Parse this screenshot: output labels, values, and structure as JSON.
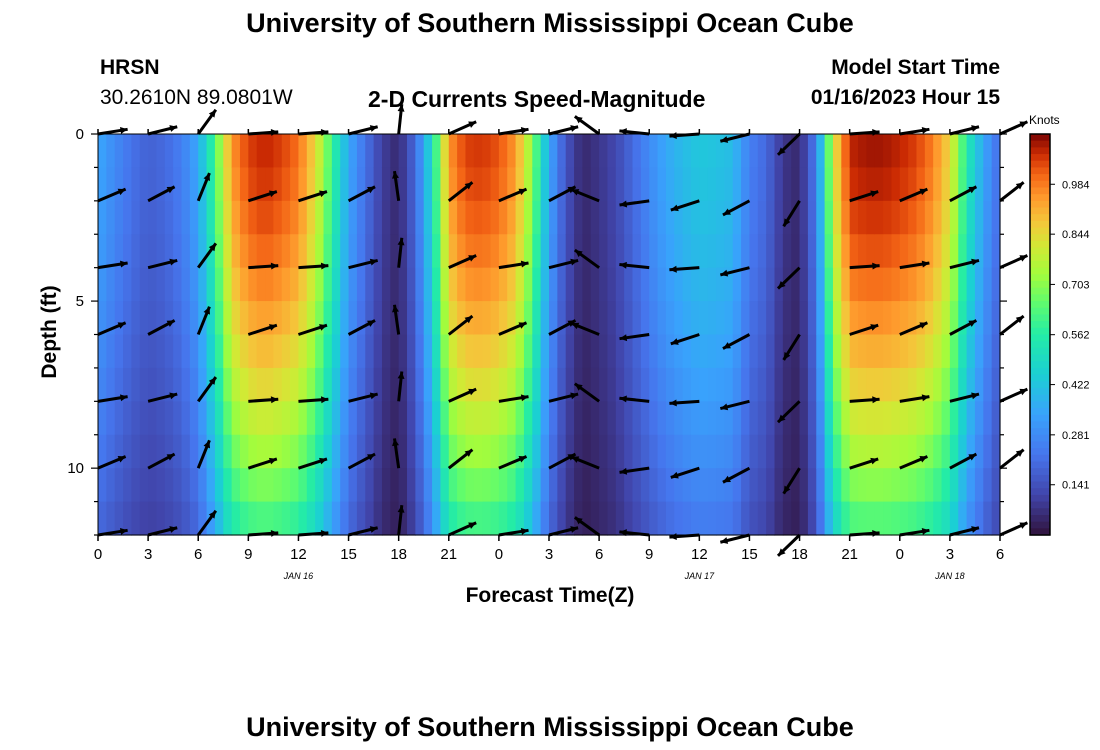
{
  "header": {
    "title": "University of Southern Mississippi Ocean Cube",
    "station": "HRSN",
    "coords": "30.2610N  89.0801W",
    "subtitle": "2-D Currents Speed-Magnitude",
    "model_start_label": "Model Start Time",
    "model_start_value": "01/16/2023 Hour 15"
  },
  "footer": {
    "title": "University of Southern Mississippi Ocean Cube"
  },
  "colors": {
    "low": "#30123b",
    "mid": "#a4fc3c",
    "high": "#7a0403",
    "arrow": "#000000"
  },
  "chart_data": {
    "type": "heatmap",
    "xlabel": "Forecast Time(Z)",
    "ylabel": "Depth (ft)",
    "x_hours_since_start": [
      0,
      39
    ],
    "x_ticks": [
      {
        "h": 0,
        "label": "0"
      },
      {
        "h": 3,
        "label": "3"
      },
      {
        "h": 6,
        "label": "6"
      },
      {
        "h": 9,
        "label": "9"
      },
      {
        "h": 12,
        "label": "12"
      },
      {
        "h": 15,
        "label": "15"
      },
      {
        "h": 18,
        "label": "18"
      },
      {
        "h": 21,
        "label": "21"
      },
      {
        "h": 24,
        "label": "0"
      },
      {
        "h": 27,
        "label": "3"
      },
      {
        "h": 30,
        "label": "6"
      },
      {
        "h": 33,
        "label": "9"
      },
      {
        "h": 36,
        "label": "12"
      },
      {
        "h": 39,
        "label": "15"
      },
      {
        "h": 42,
        "label": "18"
      },
      {
        "h": 45,
        "label": "21"
      },
      {
        "h": 48,
        "label": "0"
      },
      {
        "h": 51,
        "label": "3"
      },
      {
        "h": 54,
        "label": "6"
      }
    ],
    "x_range_hours": [
      0,
      54
    ],
    "date_labels": [
      {
        "h": 12,
        "label": "JAN 16"
      },
      {
        "h": 36,
        "label": "JAN 17"
      },
      {
        "h": 51,
        "label": "JAN 18"
      }
    ],
    "y_ticks": [
      {
        "depth": 0,
        "label": "0"
      },
      {
        "depth": 5,
        "label": "5"
      },
      {
        "depth": 10,
        "label": "10"
      }
    ],
    "y_range_ft": [
      0,
      12
    ],
    "colorbar": {
      "title": "Knots",
      "range": [
        0,
        1.125
      ],
      "ticks": [
        "0.984",
        "0.844",
        "0.703",
        "0.562",
        "0.422",
        "0.281",
        "0.141"
      ]
    },
    "surface_speed_profile": [
      {
        "h": 0,
        "v": 0.35
      },
      {
        "h": 1,
        "v": 0.28
      },
      {
        "h": 2,
        "v": 0.22
      },
      {
        "h": 3,
        "v": 0.18
      },
      {
        "h": 4,
        "v": 0.2
      },
      {
        "h": 5,
        "v": 0.25
      },
      {
        "h": 6,
        "v": 0.35
      },
      {
        "h": 7,
        "v": 0.62
      },
      {
        "h": 8,
        "v": 0.95
      },
      {
        "h": 9,
        "v": 1.05
      },
      {
        "h": 10,
        "v": 1.08
      },
      {
        "h": 11,
        "v": 1.05
      },
      {
        "h": 12,
        "v": 1.0
      },
      {
        "h": 13,
        "v": 0.85
      },
      {
        "h": 14,
        "v": 0.6
      },
      {
        "h": 15,
        "v": 0.35
      },
      {
        "h": 16,
        "v": 0.22
      },
      {
        "h": 17,
        "v": 0.1
      },
      {
        "h": 18,
        "v": 0.05
      },
      {
        "h": 19,
        "v": 0.2
      },
      {
        "h": 20,
        "v": 0.5
      },
      {
        "h": 21,
        "v": 0.95
      },
      {
        "h": 22,
        "v": 1.05
      },
      {
        "h": 23,
        "v": 1.06
      },
      {
        "h": 24,
        "v": 1.03
      },
      {
        "h": 25,
        "v": 0.95
      },
      {
        "h": 26,
        "v": 0.7
      },
      {
        "h": 27,
        "v": 0.35
      },
      {
        "h": 28,
        "v": 0.15
      },
      {
        "h": 29,
        "v": 0.05
      },
      {
        "h": 30,
        "v": 0.08
      },
      {
        "h": 31,
        "v": 0.12
      },
      {
        "h": 32,
        "v": 0.2
      },
      {
        "h": 33,
        "v": 0.28
      },
      {
        "h": 34,
        "v": 0.35
      },
      {
        "h": 35,
        "v": 0.4
      },
      {
        "h": 36,
        "v": 0.43
      },
      {
        "h": 37,
        "v": 0.42
      },
      {
        "h": 38,
        "v": 0.4
      },
      {
        "h": 39,
        "v": 0.25
      },
      {
        "h": 40,
        "v": 0.2
      },
      {
        "h": 41,
        "v": 0.08
      },
      {
        "h": 42,
        "v": 0.05
      },
      {
        "h": 43,
        "v": 0.25
      },
      {
        "h": 44,
        "v": 0.8
      },
      {
        "h": 45,
        "v": 1.08
      },
      {
        "h": 46,
        "v": 1.1
      },
      {
        "h": 47,
        "v": 1.1
      },
      {
        "h": 48,
        "v": 1.08
      },
      {
        "h": 49,
        "v": 1.05
      },
      {
        "h": 50,
        "v": 0.98
      },
      {
        "h": 51,
        "v": 0.85
      },
      {
        "h": 52,
        "v": 0.55
      },
      {
        "h": 53,
        "v": 0.35
      },
      {
        "h": 54,
        "v": 0.2
      }
    ],
    "depth_decay": "speed decreases toward the bottom (about 0.55x at 12 ft)",
    "vectors": {
      "rows_ft": [
        0,
        2,
        4,
        6,
        8,
        10,
        12
      ],
      "columns_h": [
        0,
        3,
        6,
        9,
        12,
        15,
        18,
        21,
        24,
        27,
        30,
        33,
        36,
        39,
        42,
        45,
        48,
        51,
        54
      ],
      "angle_deg_by_column": [
        15,
        20,
        60,
        10,
        10,
        20,
        90,
        30,
        15,
        20,
        150,
        180,
        190,
        200,
        230,
        10,
        15,
        20,
        30
      ]
    }
  }
}
